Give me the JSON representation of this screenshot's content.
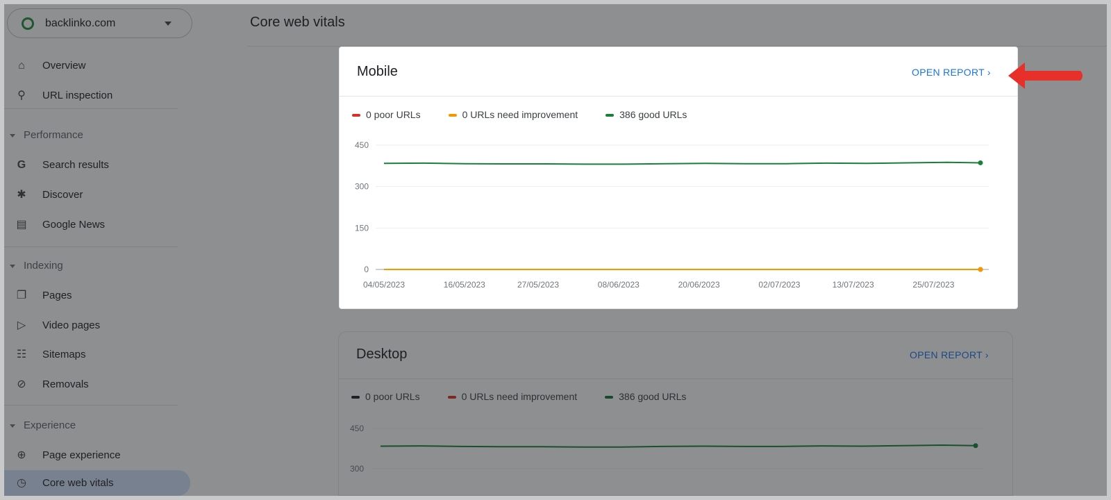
{
  "property_selector": {
    "value": "backlinko.com"
  },
  "page_title": "Core web vitals",
  "sidebar": {
    "items": [
      {
        "label": "Overview",
        "icon": "home-icon"
      },
      {
        "label": "URL inspection",
        "icon": "search-icon"
      }
    ],
    "sections": [
      {
        "label": "Performance",
        "items": [
          {
            "label": "Search results",
            "icon": "google-g-icon"
          },
          {
            "label": "Discover",
            "icon": "asterisk-icon"
          },
          {
            "label": "Google News",
            "icon": "news-icon"
          }
        ]
      },
      {
        "label": "Indexing",
        "items": [
          {
            "label": "Pages",
            "icon": "pages-icon"
          },
          {
            "label": "Video pages",
            "icon": "video-pages-icon"
          },
          {
            "label": "Sitemaps",
            "icon": "sitemap-icon"
          },
          {
            "label": "Removals",
            "icon": "eye-off-icon"
          }
        ]
      },
      {
        "label": "Experience",
        "items": [
          {
            "label": "Page experience",
            "icon": "plus-circle-icon"
          },
          {
            "label": "Core web vitals",
            "icon": "gauge-icon",
            "active": true
          }
        ]
      }
    ]
  },
  "cards": [
    {
      "title": "Mobile",
      "open_report": "OPEN REPORT",
      "legend": [
        "0 poor URLs",
        "0 URLs need improvement",
        "386 good URLs"
      ]
    },
    {
      "title": "Desktop",
      "open_report": "OPEN REPORT",
      "legend": [
        "0 poor URLs",
        "0 URLs need improvement",
        "386 good URLs"
      ]
    }
  ],
  "colors": {
    "poor": "#d93025",
    "needs_improvement": "#f29900",
    "good": "#188038",
    "link": "#1a73e8",
    "annotation_arrow": "#e8302a"
  },
  "chart_data": [
    {
      "type": "line",
      "chart": "Mobile",
      "ylim": [
        0,
        450
      ],
      "yticks": [
        0,
        150,
        300,
        450
      ],
      "grid": true,
      "xticklabels": [
        "04/05/2023",
        "16/05/2023",
        "27/05/2023",
        "08/06/2023",
        "20/06/2023",
        "02/07/2023",
        "13/07/2023",
        "25/07/2023"
      ],
      "x": [
        "04/05/2023",
        "10/05/2023",
        "16/05/2023",
        "22/05/2023",
        "28/05/2023",
        "03/06/2023",
        "09/06/2023",
        "15/06/2023",
        "21/06/2023",
        "27/06/2023",
        "03/07/2023",
        "09/07/2023",
        "15/07/2023",
        "21/07/2023",
        "27/07/2023",
        "01/08/2023"
      ],
      "series": [
        {
          "name": "0 poor URLs",
          "color": "#d93025",
          "values": [
            0,
            0,
            0,
            0,
            0,
            0,
            0,
            0,
            0,
            0,
            0,
            0,
            0,
            0,
            0,
            0
          ]
        },
        {
          "name": "0 URLs need improvement",
          "color": "#f29900",
          "values": [
            0,
            0,
            0,
            0,
            0,
            0,
            0,
            0,
            0,
            0,
            0,
            0,
            0,
            0,
            0,
            0
          ]
        },
        {
          "name": "386 good URLs",
          "color": "#188038",
          "values": [
            384,
            385,
            383,
            382,
            382,
            381,
            381,
            383,
            384,
            383,
            383,
            385,
            384,
            386,
            388,
            386
          ]
        }
      ]
    },
    {
      "type": "line",
      "chart": "Desktop",
      "ylim": [
        0,
        450
      ],
      "yticks": [
        300,
        450
      ],
      "grid": true,
      "x": [
        "04/05/2023",
        "10/05/2023",
        "16/05/2023",
        "22/05/2023",
        "28/05/2023",
        "03/06/2023",
        "09/06/2023",
        "15/06/2023",
        "21/06/2023",
        "27/06/2023",
        "03/07/2023",
        "09/07/2023",
        "15/07/2023",
        "21/07/2023",
        "27/07/2023",
        "01/08/2023"
      ],
      "series": [
        {
          "name": "386 good URLs",
          "color": "#188038",
          "values": [
            384,
            385,
            383,
            382,
            382,
            381,
            381,
            383,
            384,
            383,
            383,
            385,
            384,
            386,
            388,
            386
          ]
        }
      ]
    }
  ]
}
